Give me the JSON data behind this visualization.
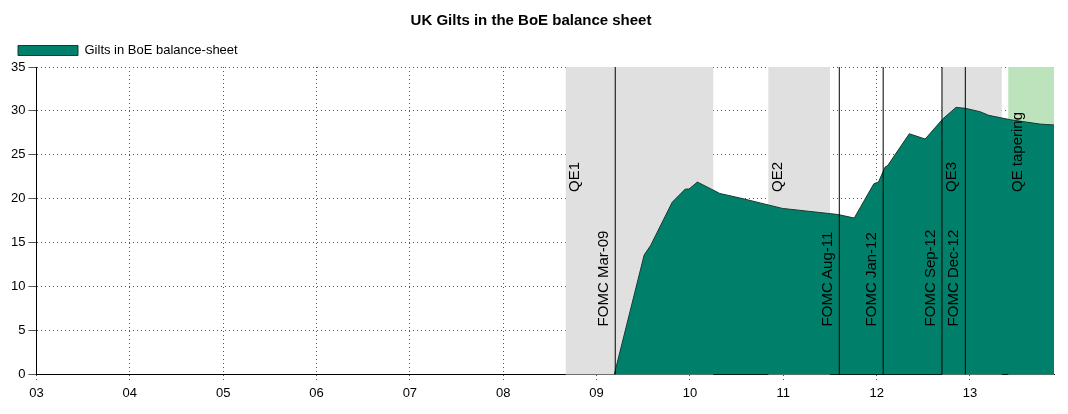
{
  "chart_data": {
    "type": "area",
    "title": "UK Gilts in the BoE balance sheet",
    "series": [
      {
        "name": "Gilts in BoE balance-sheet",
        "color": "#00806a",
        "x": [
          2009.19,
          2009.51,
          2009.58,
          2009.81,
          2009.95,
          2009.99,
          2010.08,
          2010.32,
          2010.57,
          2010.99,
          2011.59,
          2011.76,
          2011.97,
          2012.02,
          2012.09,
          2012.12,
          2012.35,
          2012.52,
          2012.71,
          2012.85,
          2012.95,
          2013.11,
          2013.2,
          2013.43,
          2013.75,
          2013.9
        ],
        "values": [
          0,
          13.6,
          14.7,
          19.6,
          21.1,
          21.1,
          21.9,
          20.6,
          20.0,
          18.9,
          18.2,
          17.8,
          21.7,
          21.9,
          23.6,
          23.8,
          27.4,
          26.8,
          29.1,
          30.4,
          30.3,
          29.9,
          29.5,
          29.0,
          28.5,
          28.4
        ]
      }
    ],
    "xlim": [
      2003,
      2013.9
    ],
    "xticks": [
      {
        "value": 2003,
        "label": "03"
      },
      {
        "value": 2004,
        "label": "04"
      },
      {
        "value": 2005,
        "label": "05"
      },
      {
        "value": 2006,
        "label": "06"
      },
      {
        "value": 2007,
        "label": "07"
      },
      {
        "value": 2008,
        "label": "08"
      },
      {
        "value": 2009,
        "label": "09"
      },
      {
        "value": 2010,
        "label": "10"
      },
      {
        "value": 2011,
        "label": "11"
      },
      {
        "value": 2012,
        "label": "12"
      },
      {
        "value": 2013,
        "label": "13"
      }
    ],
    "ylim": [
      0,
      35
    ],
    "yticks": [
      0,
      5,
      10,
      15,
      20,
      25,
      30,
      35
    ],
    "bands": [
      {
        "axis": "x",
        "from": 2008.67,
        "to": 2010.25,
        "label": "QE1",
        "color": "#e0e0e0"
      },
      {
        "axis": "x",
        "from": 2010.84,
        "to": 2011.5,
        "label": "QE2",
        "color": "#e0e0e0"
      },
      {
        "axis": "x",
        "from": 2012.7,
        "to": 2013.34,
        "label": "QE3",
        "color": "#e0e0e0"
      },
      {
        "axis": "x",
        "from": 2013.41,
        "to": 2013.9,
        "label": "QE tapering",
        "color": "#bde3bd"
      }
    ],
    "ref_lines": [
      {
        "axis": "x",
        "value": 2009.2,
        "label": "FOMC Mar-09",
        "color": "#000000"
      },
      {
        "axis": "x",
        "value": 2011.6,
        "label": "FOMC Aug-11",
        "color": "#000000"
      },
      {
        "axis": "x",
        "value": 2012.07,
        "label": "FOMC Jan-12",
        "color": "#000000"
      },
      {
        "axis": "x",
        "value": 2012.7,
        "label": "FOMC Sep-12",
        "color": "#000000"
      },
      {
        "axis": "x",
        "value": 2012.95,
        "label": "FOMC Dec-12",
        "color": "#000000"
      }
    ],
    "grid": true,
    "legend": "top left"
  }
}
